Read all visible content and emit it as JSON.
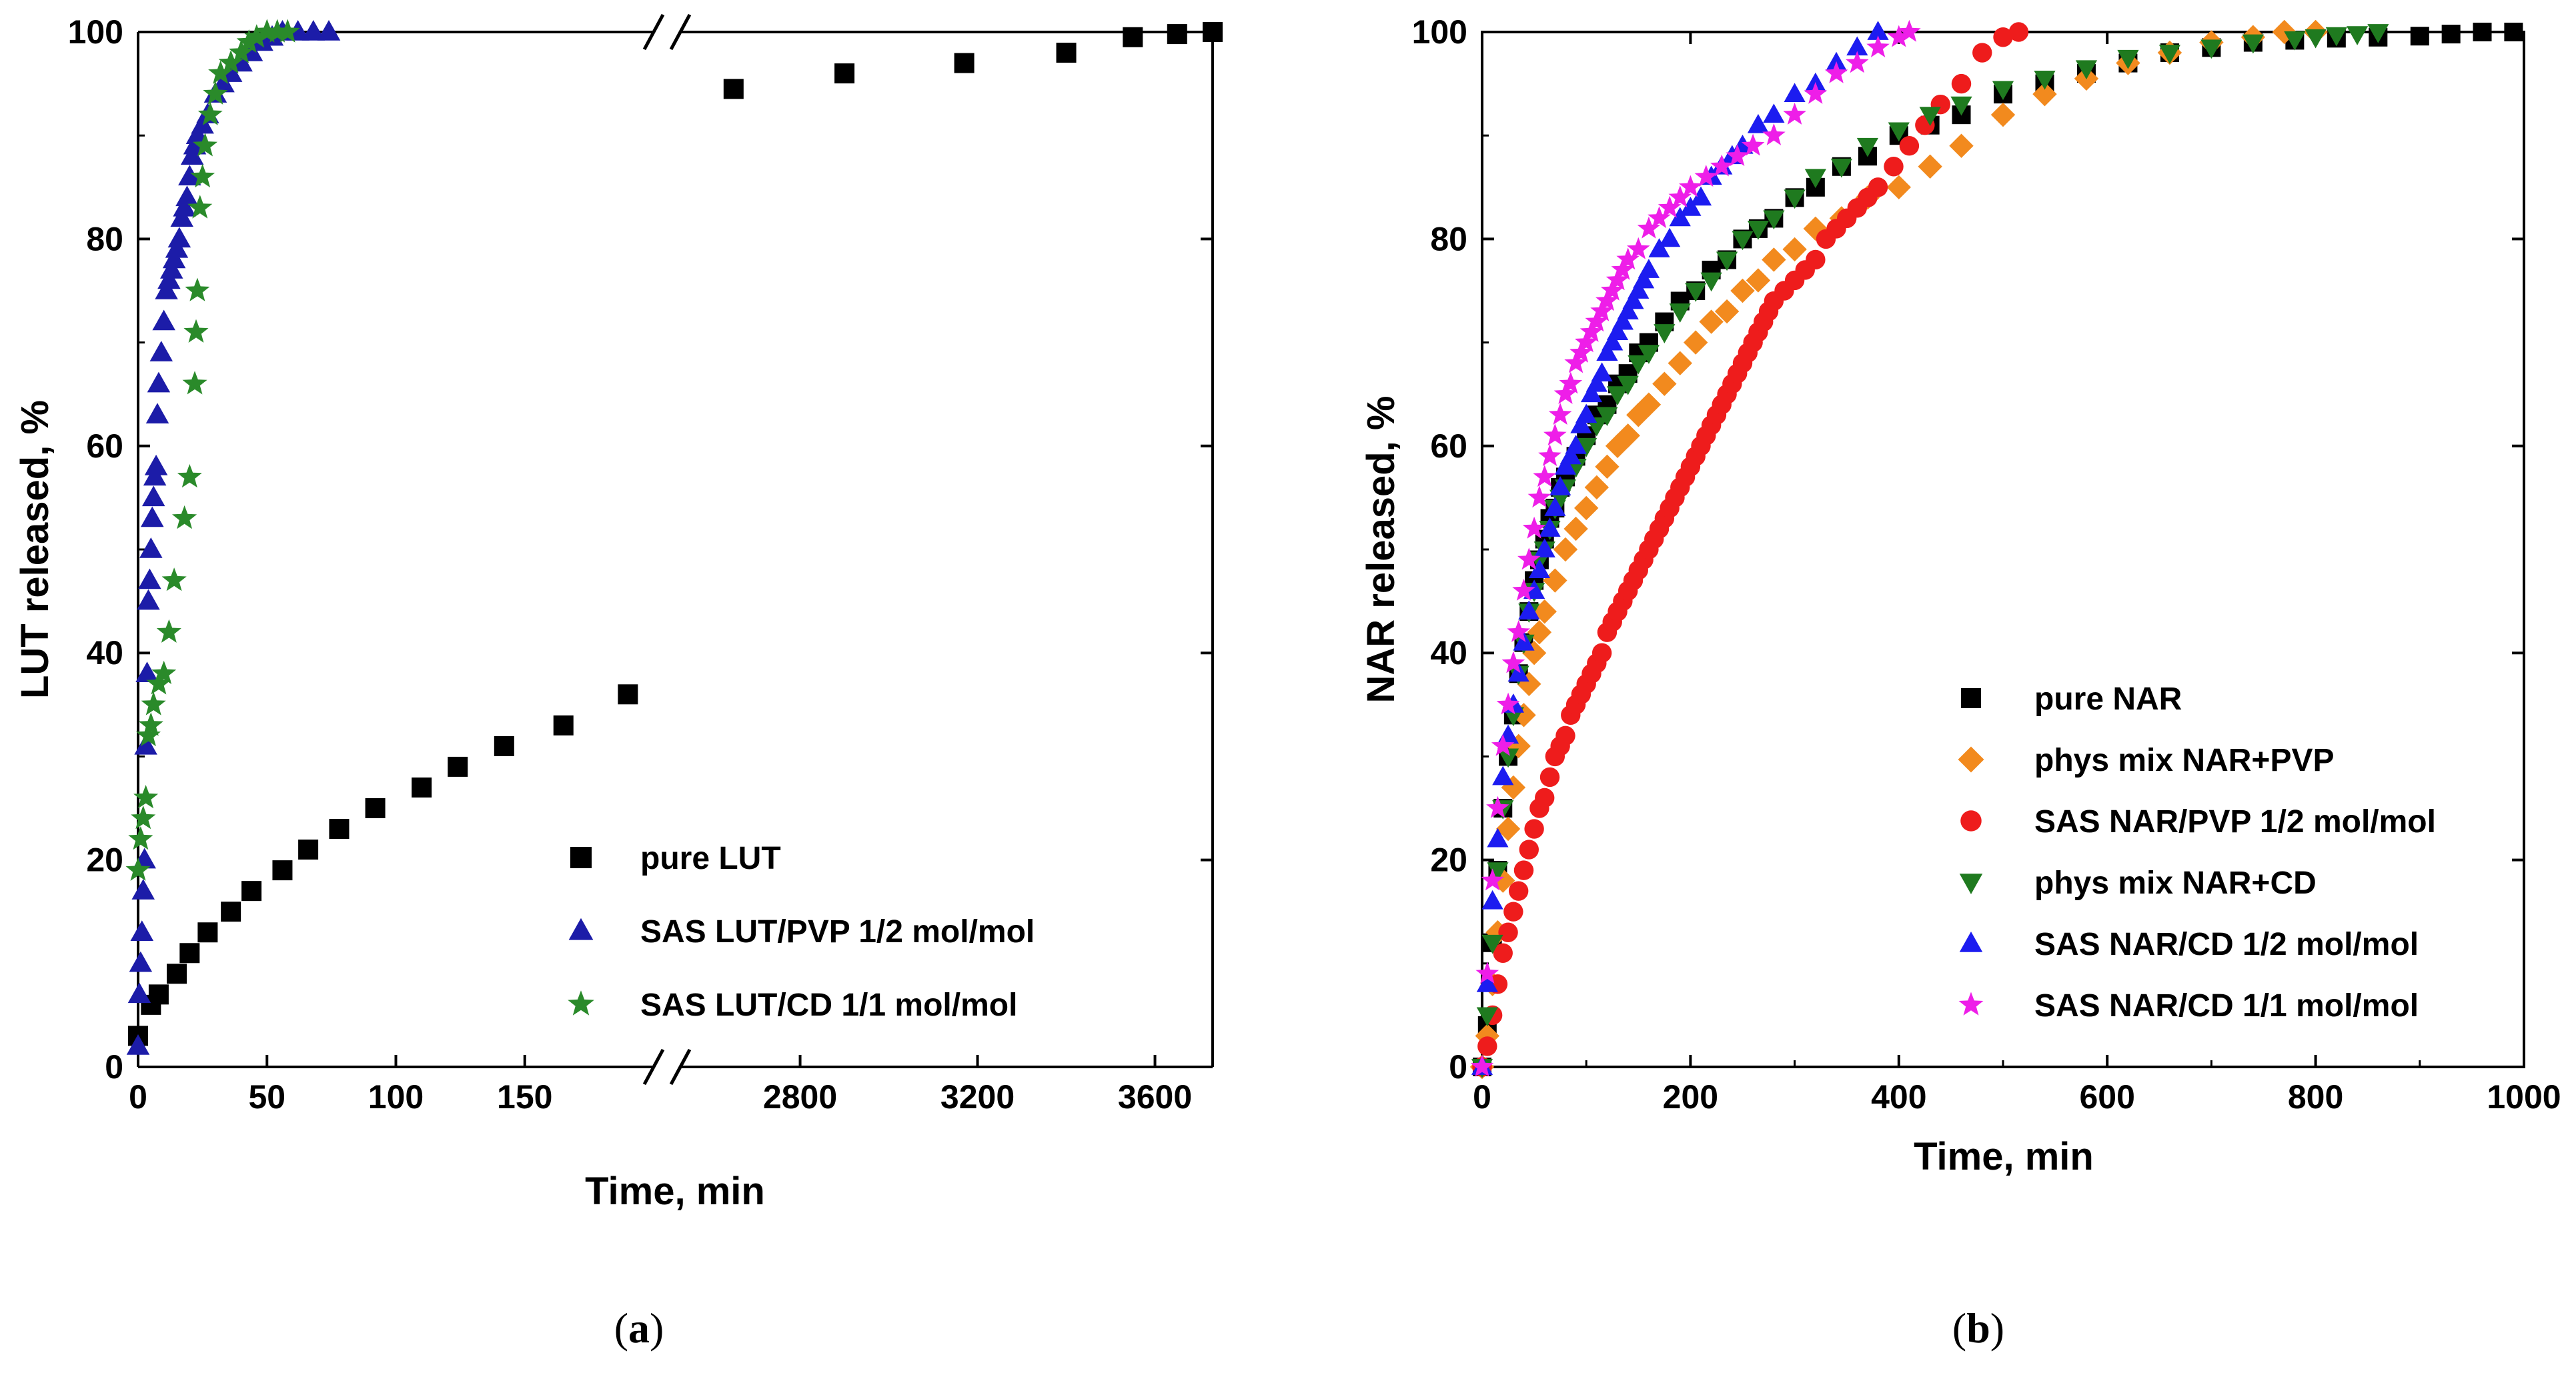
{
  "chart_data": [
    {
      "type": "scatter",
      "panel": "a",
      "panel_label_open": "(",
      "panel_label_letter": "a",
      "panel_label_close": ")",
      "xlabel": "Time, min",
      "ylabel": "LUT released, %",
      "ylim": [
        0,
        100
      ],
      "yticks": [
        0,
        20,
        40,
        60,
        80,
        100
      ],
      "x_break": true,
      "x_segments": [
        {
          "range": [
            0,
            200
          ],
          "ticks": [
            0,
            50,
            100,
            150
          ]
        },
        {
          "range": [
            2530,
            3730
          ],
          "ticks": [
            2800,
            3200,
            3600
          ]
        }
      ],
      "series": [
        {
          "name": "pure LUT",
          "marker": "square",
          "color": "#000000",
          "x": [
            0,
            5,
            8,
            15,
            20,
            27,
            36,
            44,
            56,
            66,
            78,
            92,
            110,
            124,
            142,
            165,
            190,
            2650,
            2900,
            3170,
            3400,
            3550,
            3650,
            3730
          ],
          "y": [
            3,
            6,
            7,
            9,
            11,
            13,
            15,
            17,
            19,
            21,
            23,
            25,
            27,
            29,
            31,
            33,
            36,
            94.5,
            96,
            97,
            98,
            99.5,
            99.8,
            100
          ]
        },
        {
          "name": "SAS LUT/PVP 1/2 mol/mol",
          "marker": "triangle",
          "color": "#1c1ca8",
          "x": [
            0,
            0.5,
            1,
            1.5,
            2,
            2.5,
            3,
            3.5,
            4,
            4.5,
            5,
            5.5,
            6,
            6.5,
            7,
            7.5,
            8,
            9,
            10,
            11,
            12,
            13,
            14,
            15,
            16,
            17,
            18,
            19,
            20,
            21,
            22,
            23,
            25,
            27,
            30,
            33,
            36,
            40,
            44,
            48,
            52,
            56,
            62,
            68,
            74
          ],
          "y": [
            2,
            7,
            10,
            13,
            17,
            20,
            31,
            38,
            45,
            47,
            50,
            53,
            55,
            57,
            58,
            63,
            66,
            69,
            72,
            75,
            76,
            77,
            78,
            79,
            80,
            82,
            83,
            84,
            86,
            88,
            89,
            90,
            91,
            92,
            94,
            95,
            96,
            97,
            98,
            99,
            99.5,
            100,
            100,
            100,
            100
          ]
        },
        {
          "name": "SAS LUT/CD 1/1 mol/mol",
          "marker": "star",
          "color": "#2a8a2a",
          "x": [
            0,
            1,
            2,
            3,
            4,
            5,
            6,
            8,
            10,
            12,
            14,
            18,
            20,
            22,
            22.5,
            23,
            24,
            25,
            26,
            28,
            30,
            32,
            36,
            40,
            43,
            46,
            50,
            54,
            58
          ],
          "y": [
            19,
            22,
            24,
            26,
            32,
            33,
            35,
            37,
            38,
            42,
            47,
            53,
            57,
            66,
            71,
            75,
            83,
            86,
            89,
            92,
            94,
            96,
            97,
            98,
            99,
            99.5,
            100,
            100,
            100
          ]
        }
      ]
    },
    {
      "type": "scatter",
      "panel": "b",
      "panel_label_open": "(",
      "panel_label_letter": "b",
      "panel_label_close": ")",
      "xlabel": "Time, min",
      "ylabel": "NAR released, %",
      "xlim": [
        0,
        1000
      ],
      "xticks": [
        0,
        200,
        400,
        600,
        800,
        1000
      ],
      "ylim": [
        0,
        100
      ],
      "yticks": [
        0,
        20,
        40,
        60,
        80,
        100
      ],
      "series": [
        {
          "name": "pure NAR",
          "marker": "square",
          "color": "#000000",
          "x": [
            0,
            5,
            10,
            15,
            20,
            25,
            30,
            35,
            40,
            45,
            50,
            55,
            60,
            65,
            70,
            75,
            80,
            90,
            100,
            110,
            120,
            130,
            140,
            150,
            160,
            175,
            190,
            205,
            220,
            235,
            250,
            265,
            280,
            300,
            320,
            345,
            370,
            400,
            430,
            460,
            500,
            540,
            580,
            620,
            660,
            700,
            740,
            780,
            820,
            860,
            900,
            930,
            960,
            990
          ],
          "y": [
            0,
            4,
            12,
            19,
            25,
            30,
            34,
            38,
            41,
            44,
            47,
            49,
            51,
            53,
            54,
            56,
            57,
            59,
            61,
            63,
            64,
            66,
            67,
            69,
            70,
            72,
            74,
            75,
            77,
            78,
            80,
            81,
            82,
            84,
            85,
            87,
            88,
            90,
            91,
            92,
            94,
            95,
            96,
            97,
            98,
            98.5,
            99,
            99.2,
            99.4,
            99.5,
            99.6,
            99.8,
            100,
            100
          ]
        },
        {
          "name": "phys mix NAR+PVP",
          "marker": "diamond",
          "color": "#f28a1e",
          "x": [
            0,
            5,
            10,
            15,
            20,
            25,
            30,
            35,
            40,
            45,
            50,
            55,
            60,
            70,
            80,
            90,
            100,
            110,
            120,
            130,
            140,
            150,
            160,
            175,
            190,
            205,
            220,
            235,
            250,
            265,
            280,
            300,
            320,
            345,
            370,
            400,
            430,
            460,
            500,
            540,
            580,
            620,
            660,
            700,
            740,
            770,
            800
          ],
          "y": [
            0,
            3,
            8,
            13,
            18,
            23,
            27,
            31,
            34,
            37,
            40,
            42,
            44,
            47,
            50,
            52,
            54,
            56,
            58,
            60,
            61,
            63,
            64,
            66,
            68,
            70,
            72,
            73,
            75,
            76,
            78,
            79,
            81,
            82,
            84,
            85,
            87,
            89,
            92,
            94,
            95.5,
            97,
            98,
            99,
            99.5,
            100,
            100
          ]
        },
        {
          "name": "SAS NAR/PVP 1/2 mol/mol",
          "marker": "circle",
          "color": "#ee1c1c",
          "x": [
            0,
            5,
            10,
            15,
            20,
            25,
            30,
            35,
            40,
            45,
            50,
            55,
            60,
            65,
            70,
            75,
            80,
            85,
            90,
            95,
            100,
            105,
            110,
            115,
            120,
            125,
            130,
            135,
            140,
            145,
            150,
            155,
            160,
            165,
            170,
            175,
            180,
            185,
            190,
            195,
            200,
            205,
            210,
            215,
            220,
            225,
            230,
            235,
            240,
            245,
            250,
            255,
            260,
            265,
            270,
            275,
            280,
            290,
            300,
            310,
            320,
            330,
            340,
            350,
            360,
            370,
            380,
            395,
            410,
            425,
            440,
            460,
            480,
            500,
            515
          ],
          "y": [
            0,
            2,
            5,
            8,
            11,
            13,
            15,
            17,
            19,
            21,
            23,
            25,
            26,
            28,
            30,
            31,
            32,
            34,
            35,
            36,
            37,
            38,
            39,
            40,
            42,
            43,
            44,
            45,
            46,
            47,
            48,
            49,
            50,
            51,
            52,
            53,
            54,
            55,
            56,
            57,
            58,
            59,
            60,
            61,
            62,
            63,
            64,
            65,
            66,
            67,
            68,
            69,
            70,
            71,
            72,
            73,
            74,
            75,
            76,
            77,
            78,
            80,
            81,
            82,
            83,
            84,
            85,
            87,
            89,
            91,
            93,
            95,
            98,
            99.5,
            100
          ]
        },
        {
          "name": "phys mix NAR+CD",
          "marker": "triangle-down",
          "color": "#1f7a1f",
          "x": [
            0,
            5,
            10,
            15,
            20,
            25,
            30,
            35,
            40,
            45,
            50,
            55,
            60,
            65,
            70,
            75,
            80,
            90,
            100,
            110,
            120,
            130,
            140,
            150,
            160,
            175,
            190,
            205,
            220,
            235,
            250,
            265,
            280,
            300,
            320,
            345,
            370,
            400,
            430,
            460,
            500,
            540,
            580,
            620,
            660,
            700,
            740,
            780,
            800,
            820,
            840,
            860
          ],
          "y": [
            0,
            5,
            12,
            19,
            25,
            30,
            34,
            38,
            41,
            44,
            46,
            49,
            50,
            52,
            54,
            55,
            56,
            58,
            60,
            62,
            63,
            65,
            66,
            68,
            69,
            71,
            73,
            75,
            76,
            78,
            80,
            81,
            82,
            84,
            86,
            87,
            89,
            90.5,
            92,
            93,
            94.5,
            95.5,
            96.5,
            97.5,
            98,
            98.5,
            99,
            99.3,
            99.5,
            99.7,
            99.8,
            100
          ]
        },
        {
          "name": "SAS NAR/CD 1/2 mol/mol",
          "marker": "triangle",
          "color": "#1c1cf0",
          "x": [
            0,
            5,
            10,
            15,
            20,
            25,
            30,
            35,
            40,
            45,
            50,
            55,
            60,
            65,
            70,
            75,
            80,
            85,
            90,
            95,
            100,
            105,
            110,
            115,
            120,
            125,
            130,
            135,
            140,
            145,
            150,
            155,
            160,
            170,
            180,
            190,
            200,
            210,
            220,
            230,
            240,
            250,
            265,
            280,
            300,
            320,
            340,
            360,
            380
          ],
          "y": [
            0,
            8,
            16,
            22,
            28,
            32,
            35,
            38,
            41,
            44,
            46,
            48,
            50,
            52,
            54,
            56,
            58,
            59,
            60,
            62,
            63,
            65,
            66,
            67,
            69,
            70,
            71,
            72,
            73,
            74,
            75,
            76,
            77,
            79,
            80,
            82,
            83,
            84,
            86,
            87,
            88,
            89,
            91,
            92,
            94,
            95,
            97,
            98.5,
            100
          ]
        },
        {
          "name": "SAS NAR/CD 1/1 mol/mol",
          "marker": "star",
          "color": "#ee1ee8",
          "x": [
            0,
            5,
            10,
            15,
            20,
            25,
            30,
            35,
            40,
            45,
            50,
            55,
            60,
            65,
            70,
            75,
            80,
            85,
            90,
            95,
            100,
            105,
            110,
            115,
            120,
            125,
            130,
            135,
            140,
            150,
            160,
            170,
            180,
            190,
            200,
            215,
            230,
            245,
            260,
            280,
            300,
            320,
            340,
            360,
            380,
            400,
            410
          ],
          "y": [
            0,
            9,
            18,
            25,
            31,
            35,
            39,
            42,
            46,
            49,
            52,
            55,
            57,
            59,
            61,
            63,
            65,
            66,
            68,
            69,
            70,
            71,
            72,
            73,
            74,
            75,
            76,
            77,
            78,
            79,
            81,
            82,
            83,
            84,
            85,
            86,
            87,
            88,
            89,
            90,
            92,
            94,
            96,
            97,
            98.5,
            99.5,
            100
          ]
        }
      ]
    }
  ]
}
